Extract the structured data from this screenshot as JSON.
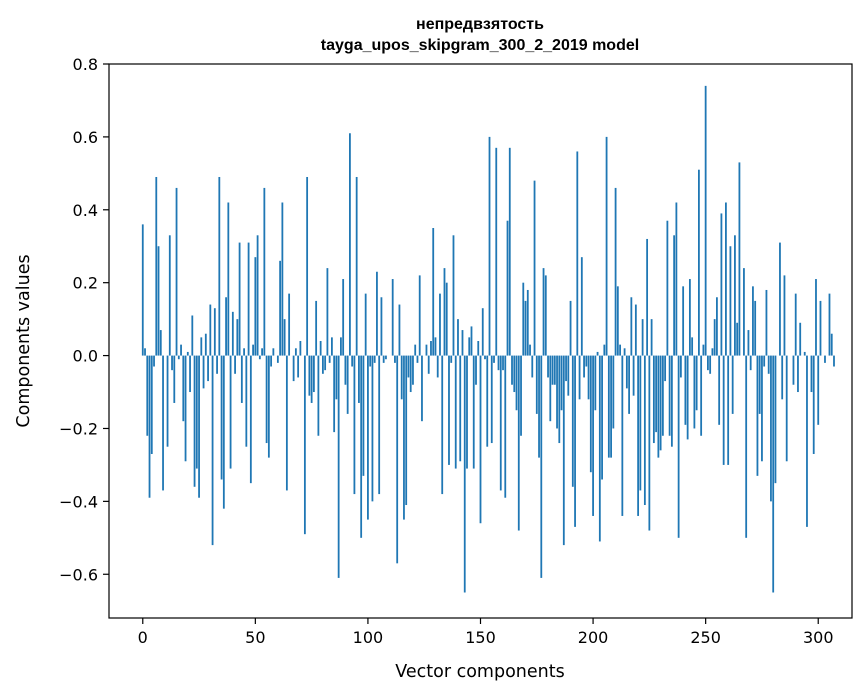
{
  "chart_data": {
    "type": "bar",
    "title": "непредвзятость",
    "subtitle": "tayga_upos_skipgram_300_2_2019 model",
    "xlabel": "Vector components",
    "ylabel": "Components values",
    "xlim": [
      -15,
      315
    ],
    "ylim": [
      -0.72,
      0.8
    ],
    "xticks": [
      0,
      50,
      100,
      150,
      200,
      250,
      300
    ],
    "xtick_labels": [
      "0",
      "50",
      "100",
      "150",
      "200",
      "250",
      "300"
    ],
    "yticks": [
      -0.6,
      -0.4,
      -0.2,
      0.0,
      0.2,
      0.4,
      0.6,
      0.8
    ],
    "ytick_labels": [
      "−0.6",
      "−0.4",
      "−0.2",
      "0.0",
      "0.2",
      "0.4",
      "0.6",
      "0.8"
    ],
    "bar_color": "#1f77b4",
    "grid": false,
    "legend": "none",
    "values": [
      0.36,
      0.02,
      -0.22,
      -0.39,
      -0.27,
      -0.03,
      0.49,
      0.3,
      0.07,
      -0.37,
      0.0,
      -0.25,
      0.33,
      -0.04,
      -0.13,
      0.46,
      -0.01,
      0.03,
      -0.18,
      -0.29,
      0.01,
      -0.1,
      0.11,
      -0.36,
      -0.31,
      -0.39,
      0.05,
      -0.09,
      0.06,
      -0.07,
      0.14,
      -0.52,
      0.13,
      -0.05,
      0.49,
      -0.34,
      -0.42,
      0.16,
      0.42,
      -0.31,
      0.12,
      -0.05,
      0.1,
      0.31,
      -0.13,
      0.02,
      -0.25,
      0.31,
      -0.35,
      0.03,
      0.27,
      0.33,
      -0.01,
      0.02,
      0.46,
      -0.24,
      -0.28,
      -0.03,
      0.02,
      0.0,
      -0.02,
      0.26,
      0.42,
      0.1,
      -0.37,
      0.17,
      0.0,
      -0.07,
      0.02,
      -0.06,
      0.04,
      0.0,
      -0.49,
      0.49,
      -0.11,
      -0.13,
      -0.1,
      0.15,
      -0.22,
      0.04,
      -0.05,
      -0.04,
      0.24,
      -0.02,
      0.05,
      -0.21,
      -0.12,
      -0.61,
      0.05,
      0.21,
      -0.08,
      -0.16,
      0.61,
      -0.03,
      -0.38,
      0.49,
      -0.13,
      -0.5,
      -0.33,
      0.17,
      -0.45,
      -0.03,
      -0.4,
      -0.02,
      0.23,
      -0.38,
      0.16,
      -0.02,
      -0.01,
      0.0,
      0.0,
      0.21,
      -0.02,
      -0.57,
      0.14,
      -0.12,
      -0.45,
      -0.41,
      -0.06,
      -0.1,
      -0.08,
      0.03,
      -0.02,
      0.22,
      -0.18,
      0.0,
      0.03,
      -0.05,
      0.04,
      0.35,
      0.05,
      -0.06,
      0.17,
      -0.38,
      0.24,
      0.2,
      -0.3,
      -0.02,
      0.33,
      -0.31,
      0.1,
      -0.29,
      0.07,
      -0.65,
      -0.31,
      0.05,
      0.08,
      -0.31,
      -0.08,
      0.04,
      -0.46,
      0.13,
      -0.01,
      -0.25,
      0.6,
      -0.24,
      -0.02,
      0.57,
      -0.04,
      -0.37,
      -0.04,
      -0.39,
      0.37,
      0.57,
      -0.08,
      -0.1,
      -0.15,
      -0.48,
      -0.22,
      0.2,
      0.15,
      0.18,
      0.03,
      -0.06,
      0.48,
      -0.16,
      -0.28,
      -0.61,
      0.24,
      0.22,
      -0.06,
      -0.18,
      -0.08,
      -0.08,
      -0.2,
      -0.24,
      -0.15,
      -0.52,
      -0.07,
      -0.11,
      0.15,
      -0.36,
      -0.47,
      0.56,
      -0.12,
      0.27,
      -0.06,
      -0.03,
      -0.12,
      -0.32,
      -0.44,
      -0.15,
      0.01,
      -0.51,
      -0.34,
      0.03,
      0.6,
      -0.28,
      -0.28,
      -0.2,
      0.46,
      0.19,
      0.03,
      -0.44,
      0.02,
      -0.09,
      -0.16,
      0.16,
      -0.11,
      0.14,
      -0.44,
      -0.37,
      0.1,
      -0.41,
      0.32,
      -0.48,
      0.1,
      -0.24,
      -0.21,
      -0.28,
      -0.26,
      -0.22,
      -0.07,
      0.37,
      -0.22,
      -0.25,
      0.33,
      0.42,
      -0.5,
      -0.06,
      0.19,
      -0.19,
      -0.23,
      0.21,
      0.05,
      -0.2,
      -0.15,
      0.51,
      -0.22,
      0.03,
      0.74,
      -0.04,
      -0.05,
      0.02,
      0.1,
      0.16,
      -0.19,
      0.39,
      -0.3,
      0.42,
      -0.3,
      0.3,
      -0.16,
      0.33,
      0.09,
      0.53,
      0.0,
      0.24,
      -0.5,
      0.07,
      -0.04,
      0.19,
      0.15,
      -0.33,
      -0.16,
      -0.29,
      -0.03,
      0.18,
      -0.05,
      -0.4,
      -0.65,
      -0.35,
      0.0,
      0.31,
      -0.12,
      0.22,
      -0.29,
      0.0,
      0.0,
      -0.08,
      0.17,
      -0.1,
      0.09,
      0.0,
      0.01,
      -0.47,
      0.0,
      -0.1,
      -0.27,
      0.21,
      -0.19,
      0.15,
      0.0,
      -0.02,
      0.0,
      0.17,
      0.06,
      -0.03,
      0.0,
      0.0
    ]
  }
}
